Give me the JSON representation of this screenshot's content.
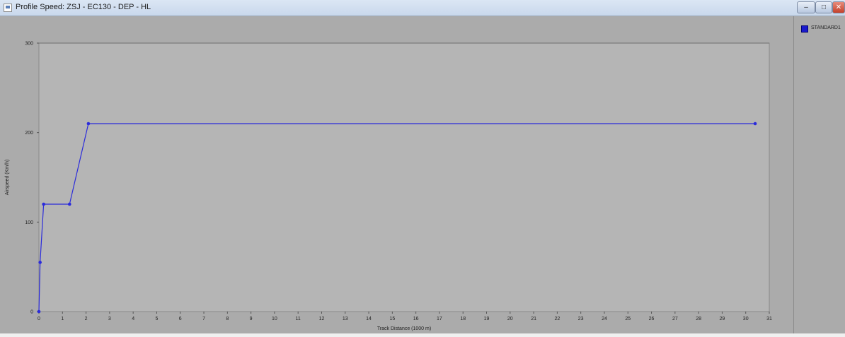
{
  "window": {
    "title": "Profile Speed: ZSJ - EC130 - DEP - HL",
    "buttons": {
      "minimize": "–",
      "maximize": "□",
      "close": "✕"
    },
    "icon": "chart-window-icon"
  },
  "legend": {
    "entries": [
      {
        "label": "STANDARD1",
        "color": "#1a1acc"
      }
    ]
  },
  "chart_data": {
    "type": "line",
    "xlabel": "Track Distance (1000 m)",
    "ylabel": "Airspeed (Km/h)",
    "xlim": [
      0,
      31
    ],
    "ylim": [
      0,
      300
    ],
    "xticks": [
      0,
      1,
      2,
      3,
      4,
      5,
      6,
      7,
      8,
      9,
      10,
      11,
      12,
      13,
      14,
      15,
      16,
      17,
      18,
      19,
      20,
      21,
      22,
      23,
      24,
      25,
      26,
      27,
      28,
      29,
      30,
      31
    ],
    "yticks": [
      0,
      100,
      200,
      300
    ],
    "grid": false,
    "legend_position": "right",
    "series": [
      {
        "name": "STANDARD1",
        "color": "#2b2bdb",
        "x": [
          0.0,
          0.05,
          0.2,
          1.3,
          2.1,
          30.4
        ],
        "y": [
          0,
          55,
          120,
          120,
          210,
          210
        ]
      }
    ]
  }
}
